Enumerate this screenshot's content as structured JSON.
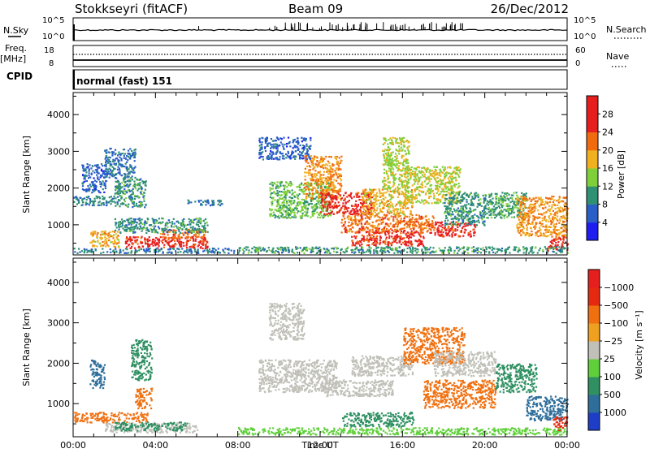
{
  "header": {
    "station": "Stokkseyri (fitACF)",
    "beam": "Beam 09",
    "date": "26/Dec/2012"
  },
  "status_panels": {
    "nsky_label": "N.Sky",
    "nsky_ticks": [
      "10^5",
      "10^0"
    ],
    "nsearch_label": "N.Search",
    "freq_label": "Freq.",
    "freq_unit": "[MHz]",
    "freq_ticks": [
      "18",
      "8"
    ],
    "nave_ticks": [
      "60",
      "0"
    ],
    "nave_label": "Nave",
    "cpid_label": "CPID",
    "cpid_text": "normal (fast) 151"
  },
  "chart_data": [
    {
      "type": "heatmap",
      "name": "power-panel",
      "ylabel": "Slant Range [km]",
      "xlabel": "",
      "xlim": [
        0,
        24
      ],
      "ylim": [
        180,
        4600
      ],
      "yticks": [
        1000,
        2000,
        3000,
        4000
      ],
      "xticks": [
        "00:00",
        "04:00",
        "08:00",
        "12:00",
        "16:00",
        "20:00",
        "00:00"
      ],
      "colorbar": {
        "label": "Power [dB]",
        "tick_labels": [
          "4",
          "8",
          "12",
          "16",
          "20",
          "24",
          "28"
        ],
        "colors": [
          "#1e1ef0",
          "#2a5fc8",
          "#2f9073",
          "#7fcf3a",
          "#f0b020",
          "#f06a10",
          "#e61e1e",
          "#e61e1e"
        ]
      },
      "regions": [
        {
          "t": [
            0.0,
            2.2
          ],
          "r": [
            1550,
            1800
          ],
          "v": 9
        },
        {
          "t": [
            0.4,
            1.6
          ],
          "r": [
            1900,
            2700
          ],
          "v": 6
        },
        {
          "t": [
            1.5,
            3.0
          ],
          "r": [
            2300,
            3100
          ],
          "v": 7
        },
        {
          "t": [
            2.0,
            3.5
          ],
          "r": [
            1500,
            2300
          ],
          "v": 10
        },
        {
          "t": [
            0.8,
            2.2
          ],
          "r": [
            400,
            850
          ],
          "v": 18
        },
        {
          "t": [
            2.5,
            6.5
          ],
          "r": [
            380,
            700
          ],
          "v": 26
        },
        {
          "t": [
            4.2,
            6.4
          ],
          "r": [
            650,
            900
          ],
          "v": 22
        },
        {
          "t": [
            2.0,
            6.5
          ],
          "r": [
            800,
            1200
          ],
          "v": 10
        },
        {
          "t": [
            0.0,
            7.8
          ],
          "r": [
            250,
            380
          ],
          "v": 8
        },
        {
          "t": [
            5.5,
            7.2
          ],
          "r": [
            1550,
            1700
          ],
          "v": 8
        },
        {
          "t": [
            9.0,
            11.5
          ],
          "r": [
            2800,
            3400
          ],
          "v": 6
        },
        {
          "t": [
            9.5,
            12.5
          ],
          "r": [
            1200,
            2200
          ],
          "v": 13
        },
        {
          "t": [
            11.2,
            13.0
          ],
          "r": [
            1700,
            2900
          ],
          "v": 20
        },
        {
          "t": [
            12.0,
            14.5
          ],
          "r": [
            1300,
            1900
          ],
          "v": 26
        },
        {
          "t": [
            13.0,
            17.5
          ],
          "r": [
            800,
            1300
          ],
          "v": 22
        },
        {
          "t": [
            13.5,
            17.0
          ],
          "r": [
            450,
            850
          ],
          "v": 25
        },
        {
          "t": [
            14.0,
            16.5
          ],
          "r": [
            1300,
            2000
          ],
          "v": 18
        },
        {
          "t": [
            15.0,
            16.3
          ],
          "r": [
            2000,
            3400
          ],
          "v": 15
        },
        {
          "t": [
            16.0,
            18.8
          ],
          "r": [
            1600,
            2600
          ],
          "v": 16
        },
        {
          "t": [
            17.5,
            19.5
          ],
          "r": [
            700,
            1100
          ],
          "v": 26
        },
        {
          "t": [
            18.0,
            20.0
          ],
          "r": [
            1000,
            1900
          ],
          "v": 10
        },
        {
          "t": [
            20.0,
            22.0
          ],
          "r": [
            1200,
            1900
          ],
          "v": 11
        },
        {
          "t": [
            21.5,
            24.0
          ],
          "r": [
            700,
            1800
          ],
          "v": 20
        },
        {
          "t": [
            23.0,
            24.0
          ],
          "r": [
            300,
            700
          ],
          "v": 26
        },
        {
          "t": [
            8.0,
            24.0
          ],
          "r": [
            250,
            420
          ],
          "v": 10
        }
      ]
    },
    {
      "type": "heatmap",
      "name": "velocity-panel",
      "ylabel": "Slant Range [km]",
      "xlabel": "Time UT",
      "xlim": [
        0,
        24
      ],
      "ylim": [
        180,
        4600
      ],
      "yticks": [
        1000,
        2000,
        3000,
        4000
      ],
      "xticks": [
        "00:00",
        "04:00",
        "08:00",
        "12:00",
        "16:00",
        "20:00",
        "00:00"
      ],
      "colorbar": {
        "label": "Velocity [m s⁻¹]",
        "tick_labels": [
          "1000",
          "500",
          "100",
          "25",
          "−25",
          "−100",
          "−500",
          "−1000"
        ],
        "colors": [
          "#1e3ec8",
          "#2e6e9a",
          "#2f9062",
          "#5fd03a",
          "#c0c0b8",
          "#f0a020",
          "#f07010",
          "#e62a10",
          "#e61e1e"
        ]
      },
      "regions": [
        {
          "t": [
            0.0,
            3.6
          ],
          "r": [
            550,
            800
          ],
          "v": -150
        },
        {
          "t": [
            1.5,
            6.0
          ],
          "r": [
            300,
            550
          ],
          "v": 0
        },
        {
          "t": [
            2.0,
            5.5
          ],
          "r": [
            350,
            560
          ],
          "v": 120
        },
        {
          "t": [
            0.8,
            1.5
          ],
          "r": [
            1400,
            2100
          ],
          "v": 700
        },
        {
          "t": [
            2.8,
            3.8
          ],
          "r": [
            1600,
            2600
          ],
          "v": 400
        },
        {
          "t": [
            3.0,
            3.8
          ],
          "r": [
            900,
            1400
          ],
          "v": -400
        },
        {
          "t": [
            9.0,
            12.8
          ],
          "r": [
            1300,
            2100
          ],
          "v": 0
        },
        {
          "t": [
            9.5,
            11.2
          ],
          "r": [
            2600,
            3500
          ],
          "v": 0
        },
        {
          "t": [
            12.0,
            15.5
          ],
          "r": [
            1200,
            1600
          ],
          "v": 0
        },
        {
          "t": [
            13.5,
            16.5
          ],
          "r": [
            1700,
            2200
          ],
          "v": 0
        },
        {
          "t": [
            13.0,
            16.5
          ],
          "r": [
            450,
            800
          ],
          "v": 150
        },
        {
          "t": [
            16.0,
            19.0
          ],
          "r": [
            2000,
            2900
          ],
          "v": -400
        },
        {
          "t": [
            17.0,
            20.5
          ],
          "r": [
            900,
            1600
          ],
          "v": -300
        },
        {
          "t": [
            17.5,
            20.5
          ],
          "r": [
            1700,
            2300
          ],
          "v": 0
        },
        {
          "t": [
            20.5,
            22.5
          ],
          "r": [
            1300,
            2000
          ],
          "v": 300
        },
        {
          "t": [
            22.0,
            24.0
          ],
          "r": [
            600,
            1200
          ],
          "v": 700
        },
        {
          "t": [
            23.3,
            24.0
          ],
          "r": [
            350,
            700
          ],
          "v": -800
        },
        {
          "t": [
            8.0,
            24.0
          ],
          "r": [
            250,
            420
          ],
          "v": 50
        }
      ]
    }
  ]
}
